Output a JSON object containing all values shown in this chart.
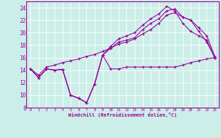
{
  "xlabel": "Windchill (Refroidissement éolien,°C)",
  "background_color": "#cceee8",
  "line_color": "#990099",
  "xlim_min": -0.5,
  "xlim_max": 23.5,
  "ylim_min": 8,
  "ylim_max": 25,
  "xticks": [
    0,
    1,
    2,
    3,
    4,
    5,
    6,
    7,
    8,
    9,
    10,
    11,
    12,
    13,
    14,
    15,
    16,
    17,
    18,
    19,
    20,
    21,
    22,
    23
  ],
  "yticks": [
    8,
    10,
    12,
    14,
    16,
    18,
    20,
    22,
    24
  ],
  "curve1_x": [
    0,
    1,
    2,
    3,
    4,
    5,
    6,
    7,
    8,
    9,
    10,
    11,
    12,
    13,
    14,
    15,
    16,
    17,
    18,
    19,
    20,
    21,
    22,
    23
  ],
  "curve1_y": [
    14.2,
    12.8,
    14.2,
    14.0,
    14.1,
    10.0,
    9.5,
    8.8,
    11.8,
    16.4,
    14.2,
    14.2,
    14.5,
    14.5,
    14.5,
    14.5,
    14.5,
    14.5,
    14.5,
    14.8,
    15.2,
    15.5,
    15.8,
    16.0
  ],
  "curve2_x": [
    0,
    1,
    2,
    3,
    4,
    5,
    6,
    7,
    8,
    9,
    10,
    11,
    12,
    13,
    14,
    15,
    16,
    17,
    18,
    19,
    20,
    21,
    22,
    23
  ],
  "curve2_y": [
    14.2,
    12.8,
    14.2,
    14.0,
    14.1,
    10.0,
    9.5,
    8.8,
    11.8,
    16.4,
    17.5,
    18.5,
    18.8,
    19.2,
    20.5,
    21.5,
    22.2,
    23.5,
    23.8,
    22.5,
    22.0,
    20.2,
    18.5,
    16.0
  ],
  "curve3_x": [
    0,
    1,
    2,
    3,
    4,
    5,
    6,
    7,
    8,
    9,
    10,
    11,
    12,
    13,
    14,
    15,
    16,
    17,
    18,
    19,
    20,
    21,
    22,
    23
  ],
  "curve3_y": [
    14.2,
    12.8,
    14.2,
    14.0,
    14.1,
    10.0,
    9.5,
    8.8,
    11.8,
    16.4,
    17.8,
    19.0,
    19.5,
    20.0,
    21.2,
    22.2,
    23.0,
    24.2,
    23.5,
    21.5,
    20.2,
    19.5,
    18.8,
    16.0
  ],
  "curve4_x": [
    0,
    1,
    2,
    3,
    4,
    5,
    6,
    7,
    8,
    9,
    10,
    11,
    12,
    13,
    14,
    15,
    16,
    17,
    18,
    19,
    20,
    21,
    22,
    23
  ],
  "curve4_y": [
    14.2,
    13.2,
    14.5,
    14.8,
    15.2,
    15.5,
    15.8,
    16.2,
    16.5,
    17.0,
    17.5,
    18.2,
    18.5,
    19.0,
    19.8,
    20.5,
    21.5,
    22.8,
    23.2,
    22.5,
    22.0,
    20.8,
    19.5,
    16.2
  ]
}
